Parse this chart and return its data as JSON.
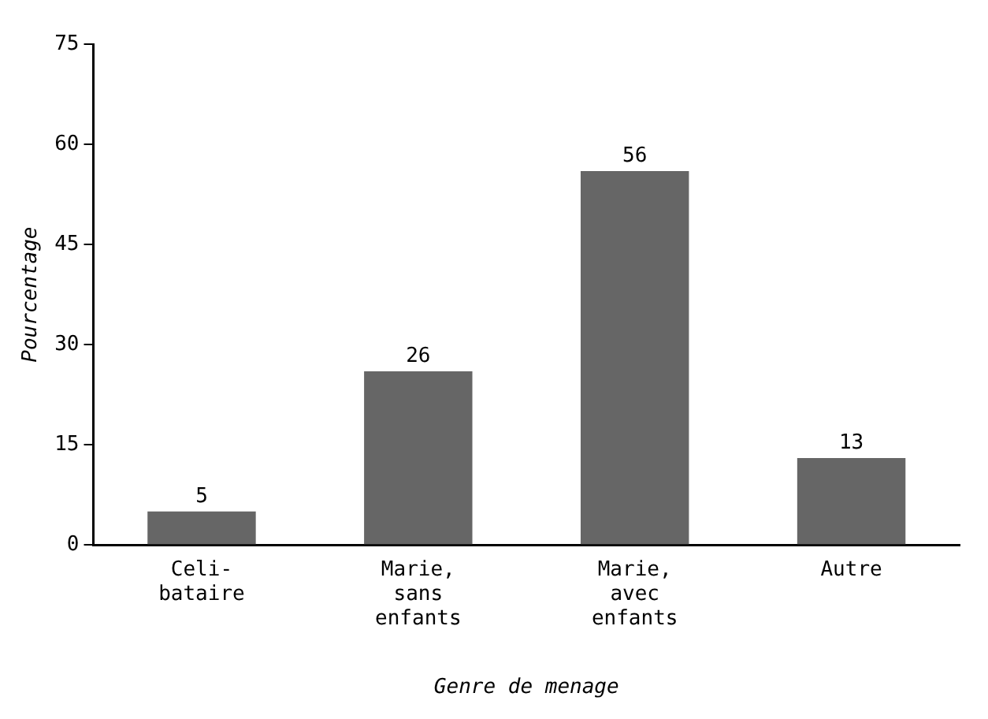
{
  "chart_data": {
    "type": "bar",
    "xlabel": "Genre de menage",
    "ylabel": "Pourcentage",
    "categories": [
      "Celi-\nbataire",
      "Marie,\nsans\nenfants",
      "Marie,\navec\nenfants",
      "Autre"
    ],
    "values": [
      5,
      26,
      56,
      13
    ],
    "color": "#666666",
    "ylim": [
      0,
      75
    ],
    "yticks": [
      0,
      15,
      30,
      45,
      60,
      75
    ],
    "grid": false,
    "legend": false,
    "data_labels": true
  }
}
